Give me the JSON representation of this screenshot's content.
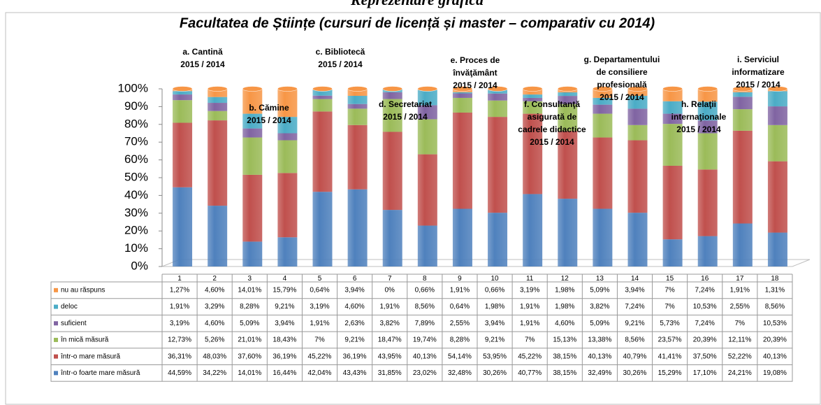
{
  "chart_data": {
    "type": "stacked_bar",
    "supertitle": "Reprezentare grafică",
    "title": "Facultatea de Științe (cursuri de licență și master – comparativ cu 2014)",
    "categories": [
      "1",
      "2",
      "3",
      "4",
      "5",
      "6",
      "7",
      "8",
      "9",
      "10",
      "11",
      "12",
      "13",
      "14",
      "15",
      "16",
      "17",
      "18"
    ],
    "ylim": [
      0,
      100
    ],
    "yticks": [
      {
        "value": 0,
        "label": "0%"
      },
      {
        "value": 10,
        "label": "10%"
      },
      {
        "value": 20,
        "label": "20%"
      },
      {
        "value": 30,
        "label": "30%"
      },
      {
        "value": 40,
        "label": "40%"
      },
      {
        "value": 50,
        "label": "50%"
      },
      {
        "value": 60,
        "label": "60%"
      },
      {
        "value": 70,
        "label": "70%"
      },
      {
        "value": 80,
        "label": "80%"
      },
      {
        "value": 90,
        "label": "90%"
      },
      {
        "value": 100,
        "label": "100%"
      }
    ],
    "series": [
      {
        "name": "într-o foarte mare măsură",
        "color": "#4f81bd",
        "values": [
          44.59,
          34.22,
          14.01,
          16.44,
          42.04,
          43.43,
          31.85,
          23.02,
          32.48,
          30.26,
          40.77,
          38.15,
          32.49,
          30.26,
          15.29,
          17.1,
          24.21,
          19.08
        ],
        "value_labels": [
          "44,59%",
          "34,22%",
          "14,01%",
          "16,44%",
          "42,04%",
          "43,43%",
          "31,85%",
          "23,02%",
          "32,48%",
          "30,26%",
          "40,77%",
          "38,15%",
          "32,49%",
          "30,26%",
          "15,29%",
          "17,10%",
          "24,21%",
          "19,08%"
        ]
      },
      {
        "name": "într-o mare măsură",
        "color": "#c0504d",
        "values": [
          36.31,
          48.03,
          37.6,
          36.19,
          45.22,
          36.19,
          43.95,
          40.13,
          54.14,
          53.95,
          45.22,
          38.15,
          40.13,
          40.79,
          41.41,
          37.5,
          52.22,
          40.13
        ],
        "value_labels": [
          "36,31%",
          "48,03%",
          "37,60%",
          "36,19%",
          "45,22%",
          "36,19%",
          "43,95%",
          "40,13%",
          "54,14%",
          "53,95%",
          "45,22%",
          "38,15%",
          "40,13%",
          "40,79%",
          "41,41%",
          "37,50%",
          "52,22%",
          "40,13%"
        ]
      },
      {
        "name": "în mică măsură",
        "color": "#9bbb59",
        "values": [
          12.73,
          5.26,
          21.01,
          18.43,
          7,
          9.21,
          18.47,
          19.74,
          8.28,
          9.21,
          7,
          15.13,
          13.38,
          8.56,
          23.57,
          20.39,
          12.11,
          20.39
        ],
        "value_labels": [
          "12,73%",
          "5,26%",
          "21,01%",
          "18,43%",
          "7%",
          "9,21%",
          "18,47%",
          "19,74%",
          "8,28%",
          "9,21%",
          "7%",
          "15,13%",
          "13,38%",
          "8,56%",
          "23,57%",
          "20,39%",
          "12,11%",
          "20,39%"
        ]
      },
      {
        "name": "suficient",
        "color": "#8064a2",
        "values": [
          3.19,
          4.6,
          5.09,
          3.94,
          1.91,
          2.63,
          3.82,
          7.89,
          2.55,
          3.94,
          1.91,
          4.6,
          5.09,
          9.21,
          5.73,
          7.24,
          7,
          10.53
        ],
        "value_labels": [
          "3,19%",
          "4,60%",
          "5,09%",
          "3,94%",
          "1,91%",
          "2,63%",
          "3,82%",
          "7,89%",
          "2,55%",
          "3,94%",
          "1,91%",
          "4,60%",
          "5,09%",
          "9,21%",
          "5,73%",
          "7,24%",
          "7%",
          "10,53%"
        ]
      },
      {
        "name": "deloc",
        "color": "#4bacc6",
        "values": [
          1.91,
          3.29,
          8.28,
          9.21,
          3.19,
          4.6,
          1.91,
          8.56,
          0.64,
          1.98,
          1.91,
          1.98,
          3.82,
          7.24,
          7,
          10.53,
          2.55,
          8.56
        ],
        "value_labels": [
          "1,91%",
          "3,29%",
          "8,28%",
          "9,21%",
          "3,19%",
          "4,60%",
          "1,91%",
          "8,56%",
          "0,64%",
          "1,98%",
          "1,91%",
          "1,98%",
          "3,82%",
          "7,24%",
          "7%",
          "10,53%",
          "2,55%",
          "8,56%"
        ]
      },
      {
        "name": "nu au răspuns",
        "color": "#f79646",
        "values": [
          1.27,
          4.6,
          14.01,
          15.79,
          0.64,
          3.94,
          0,
          0.66,
          1.91,
          0.66,
          3.19,
          1.98,
          5.09,
          3.94,
          7,
          7.24,
          1.91,
          1.31
        ],
        "value_labels": [
          "1,27%",
          "4,60%",
          "14,01%",
          "15,79%",
          "0,64%",
          "3,94%",
          "0%",
          "0,66%",
          "1,91%",
          "0,66%",
          "3,19%",
          "1,98%",
          "5,09%",
          "3,94%",
          "7%",
          "7,24%",
          "1,91%",
          "1,31%"
        ]
      }
    ],
    "annotations": [
      {
        "lines": [
          "a. Cantină",
          "2015 / 2014"
        ]
      },
      {
        "lines": [
          "b. Cămine",
          "2015 / 2014"
        ]
      },
      {
        "lines": [
          "c. Bibliotecă",
          "2015 / 2014"
        ]
      },
      {
        "lines": [
          "d. Secretariat",
          "2015 / 2014"
        ]
      },
      {
        "lines": [
          "e. Proces de",
          "învăţământ",
          "2015 / 2014"
        ]
      },
      {
        "lines": [
          "f. Consultanţă",
          "asigurată de",
          "cadrele didactice",
          "2015 / 2014"
        ]
      },
      {
        "lines": [
          "g. Departamentului",
          "de consiliere",
          "profesională",
          "2015 / 2014"
        ]
      },
      {
        "lines": [
          "h. Relaţii",
          "internaţionale",
          "2015 / 2014"
        ]
      },
      {
        "lines": [
          "i. Serviciul",
          "informatizare",
          "2015 / 2014"
        ]
      }
    ]
  }
}
